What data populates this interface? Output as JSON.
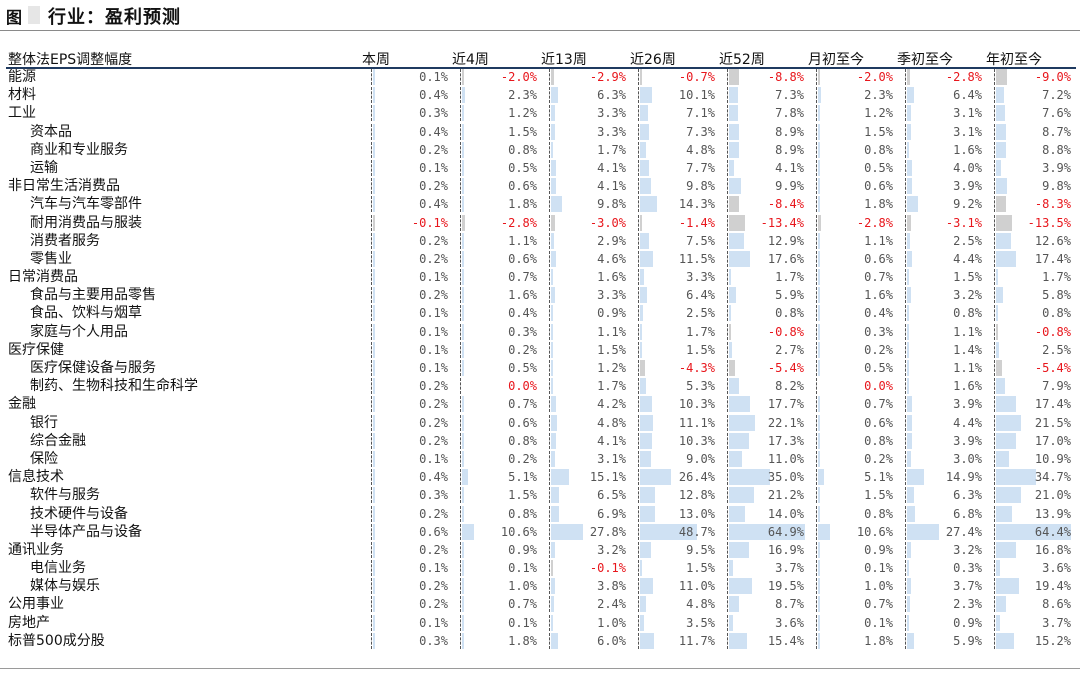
{
  "figure": {
    "label": "图",
    "title": "行业：盈利预测"
  },
  "columns": {
    "row_header": "整体法EPS调整幅度",
    "list": [
      "本周",
      "近4周",
      "近13周",
      "近26周",
      "近52周",
      "月初至今",
      "季初至今",
      "年初至今"
    ]
  },
  "colors": {
    "positive_bar": "#cfe1f3",
    "negative_bar": "#d0d0d0",
    "negative_text": "#e8161c",
    "header_rule": "#1f3a60"
  },
  "rows": [
    {
      "name": "能源",
      "level": 0,
      "values": [
        0.1,
        -2.0,
        -2.9,
        -0.7,
        -8.8,
        -2.0,
        -2.8,
        -9.0
      ],
      "display": [
        "0.1%",
        "-2.0%",
        "-2.9%",
        "-0.7%",
        "-8.8%",
        "-2.0%",
        "-2.8%",
        "-9.0%"
      ]
    },
    {
      "name": "材料",
      "level": 0,
      "values": [
        0.4,
        2.3,
        6.3,
        10.1,
        7.3,
        2.3,
        6.4,
        7.2
      ],
      "display": [
        "0.4%",
        "2.3%",
        "6.3%",
        "10.1%",
        "7.3%",
        "2.3%",
        "6.4%",
        "7.2%"
      ]
    },
    {
      "name": "工业",
      "level": 0,
      "values": [
        0.3,
        1.2,
        3.3,
        7.1,
        7.8,
        1.2,
        3.1,
        7.6
      ],
      "display": [
        "0.3%",
        "1.2%",
        "3.3%",
        "7.1%",
        "7.8%",
        "1.2%",
        "3.1%",
        "7.6%"
      ]
    },
    {
      "name": "资本品",
      "level": 1,
      "values": [
        0.4,
        1.5,
        3.3,
        7.3,
        8.9,
        1.5,
        3.1,
        8.7
      ],
      "display": [
        "0.4%",
        "1.5%",
        "3.3%",
        "7.3%",
        "8.9%",
        "1.5%",
        "3.1%",
        "8.7%"
      ]
    },
    {
      "name": "商业和专业服务",
      "level": 1,
      "values": [
        0.2,
        0.8,
        1.7,
        4.8,
        8.9,
        0.8,
        1.6,
        8.8
      ],
      "display": [
        "0.2%",
        "0.8%",
        "1.7%",
        "4.8%",
        "8.9%",
        "0.8%",
        "1.6%",
        "8.8%"
      ]
    },
    {
      "name": "运输",
      "level": 1,
      "values": [
        0.1,
        0.5,
        4.1,
        7.7,
        4.1,
        0.5,
        4.0,
        3.9
      ],
      "display": [
        "0.1%",
        "0.5%",
        "4.1%",
        "7.7%",
        "4.1%",
        "0.5%",
        "4.0%",
        "3.9%"
      ]
    },
    {
      "name": "非日常生活消费品",
      "level": 0,
      "values": [
        0.2,
        0.6,
        4.1,
        9.8,
        9.9,
        0.6,
        3.9,
        9.8
      ],
      "display": [
        "0.2%",
        "0.6%",
        "4.1%",
        "9.8%",
        "9.9%",
        "0.6%",
        "3.9%",
        "9.8%"
      ]
    },
    {
      "name": "汽车与汽车零部件",
      "level": 1,
      "values": [
        0.4,
        1.8,
        9.8,
        14.3,
        -8.4,
        1.8,
        9.2,
        -8.3
      ],
      "display": [
        "0.4%",
        "1.8%",
        "9.8%",
        "14.3%",
        "-8.4%",
        "1.8%",
        "9.2%",
        "-8.3%"
      ]
    },
    {
      "name": "耐用消费品与服装",
      "level": 1,
      "values": [
        -0.1,
        -2.8,
        -3.0,
        -1.4,
        -13.4,
        -2.8,
        -3.1,
        -13.5
      ],
      "display": [
        "-0.1%",
        "-2.8%",
        "-3.0%",
        "-1.4%",
        "-13.4%",
        "-2.8%",
        "-3.1%",
        "-13.5%"
      ]
    },
    {
      "name": "消费者服务",
      "level": 1,
      "values": [
        0.2,
        1.1,
        2.9,
        7.5,
        12.9,
        1.1,
        2.5,
        12.6
      ],
      "display": [
        "0.2%",
        "1.1%",
        "2.9%",
        "7.5%",
        "12.9%",
        "1.1%",
        "2.5%",
        "12.6%"
      ]
    },
    {
      "name": "零售业",
      "level": 1,
      "values": [
        0.2,
        0.6,
        4.6,
        11.5,
        17.6,
        0.6,
        4.4,
        17.4
      ],
      "display": [
        "0.2%",
        "0.6%",
        "4.6%",
        "11.5%",
        "17.6%",
        "0.6%",
        "4.4%",
        "17.4%"
      ]
    },
    {
      "name": "日常消费品",
      "level": 0,
      "values": [
        0.1,
        0.7,
        1.6,
        3.3,
        1.7,
        0.7,
        1.5,
        1.7
      ],
      "display": [
        "0.1%",
        "0.7%",
        "1.6%",
        "3.3%",
        "1.7%",
        "0.7%",
        "1.5%",
        "1.7%"
      ]
    },
    {
      "name": "食品与主要用品零售",
      "level": 1,
      "values": [
        0.2,
        1.6,
        3.3,
        6.4,
        5.9,
        1.6,
        3.2,
        5.8
      ],
      "display": [
        "0.2%",
        "1.6%",
        "3.3%",
        "6.4%",
        "5.9%",
        "1.6%",
        "3.2%",
        "5.8%"
      ]
    },
    {
      "name": "食品、饮料与烟草",
      "level": 1,
      "values": [
        0.1,
        0.4,
        0.9,
        2.5,
        0.8,
        0.4,
        0.8,
        0.8
      ],
      "display": [
        "0.1%",
        "0.4%",
        "0.9%",
        "2.5%",
        "0.8%",
        "0.4%",
        "0.8%",
        "0.8%"
      ]
    },
    {
      "name": "家庭与个人用品",
      "level": 1,
      "values": [
        0.1,
        0.3,
        1.1,
        1.7,
        -0.8,
        0.3,
        1.1,
        -0.8
      ],
      "display": [
        "0.1%",
        "0.3%",
        "1.1%",
        "1.7%",
        "-0.8%",
        "0.3%",
        "1.1%",
        "-0.8%"
      ]
    },
    {
      "name": "医疗保健",
      "level": 0,
      "values": [
        0.1,
        0.2,
        1.5,
        1.5,
        2.7,
        0.2,
        1.4,
        2.5
      ],
      "display": [
        "0.1%",
        "0.2%",
        "1.5%",
        "1.5%",
        "2.7%",
        "0.2%",
        "1.4%",
        "2.5%"
      ]
    },
    {
      "name": "医疗保健设备与服务",
      "level": 1,
      "values": [
        0.1,
        0.5,
        1.2,
        -4.3,
        -5.4,
        0.5,
        1.1,
        -5.4
      ],
      "display": [
        "0.1%",
        "0.5%",
        "1.2%",
        "-4.3%",
        "-5.4%",
        "0.5%",
        "1.1%",
        "-5.4%"
      ]
    },
    {
      "name": "制药、生物科技和生命科学",
      "level": 1,
      "values": [
        0.2,
        0.0,
        1.7,
        5.3,
        8.2,
        0.0,
        1.6,
        7.9
      ],
      "display": [
        "0.2%",
        "0.0%",
        "1.7%",
        "5.3%",
        "8.2%",
        "0.0%",
        "1.6%",
        "7.9%"
      ],
      "red_zero": [
        1,
        5
      ]
    },
    {
      "name": "金融",
      "level": 0,
      "values": [
        0.2,
        0.7,
        4.2,
        10.3,
        17.7,
        0.7,
        3.9,
        17.4
      ],
      "display": [
        "0.2%",
        "0.7%",
        "4.2%",
        "10.3%",
        "17.7%",
        "0.7%",
        "3.9%",
        "17.4%"
      ]
    },
    {
      "name": "银行",
      "level": 1,
      "values": [
        0.2,
        0.6,
        4.8,
        11.1,
        22.1,
        0.6,
        4.4,
        21.5
      ],
      "display": [
        "0.2%",
        "0.6%",
        "4.8%",
        "11.1%",
        "22.1%",
        "0.6%",
        "4.4%",
        "21.5%"
      ]
    },
    {
      "name": "综合金融",
      "level": 1,
      "values": [
        0.2,
        0.8,
        4.1,
        10.3,
        17.3,
        0.8,
        3.9,
        17.0
      ],
      "display": [
        "0.2%",
        "0.8%",
        "4.1%",
        "10.3%",
        "17.3%",
        "0.8%",
        "3.9%",
        "17.0%"
      ]
    },
    {
      "name": "保险",
      "level": 1,
      "values": [
        0.1,
        0.2,
        3.1,
        9.0,
        11.0,
        0.2,
        3.0,
        10.9
      ],
      "display": [
        "0.1%",
        "0.2%",
        "3.1%",
        "9.0%",
        "11.0%",
        "0.2%",
        "3.0%",
        "10.9%"
      ]
    },
    {
      "name": "信息技术",
      "level": 0,
      "values": [
        0.4,
        5.1,
        15.1,
        26.4,
        35.0,
        5.1,
        14.9,
        34.7
      ],
      "display": [
        "0.4%",
        "5.1%",
        "15.1%",
        "26.4%",
        "35.0%",
        "5.1%",
        "14.9%",
        "34.7%"
      ]
    },
    {
      "name": "软件与服务",
      "level": 1,
      "values": [
        0.3,
        1.5,
        6.5,
        12.8,
        21.2,
        1.5,
        6.3,
        21.0
      ],
      "display": [
        "0.3%",
        "1.5%",
        "6.5%",
        "12.8%",
        "21.2%",
        "1.5%",
        "6.3%",
        "21.0%"
      ]
    },
    {
      "name": "技术硬件与设备",
      "level": 1,
      "values": [
        0.2,
        0.8,
        6.9,
        13.0,
        14.0,
        0.8,
        6.8,
        13.9
      ],
      "display": [
        "0.2%",
        "0.8%",
        "6.9%",
        "13.0%",
        "14.0%",
        "0.8%",
        "6.8%",
        "13.9%"
      ]
    },
    {
      "name": "半导体产品与设备",
      "level": 1,
      "values": [
        0.6,
        10.6,
        27.8,
        48.7,
        64.9,
        10.6,
        27.4,
        64.4
      ],
      "display": [
        "0.6%",
        "10.6%",
        "27.8%",
        "48.7%",
        "64.9%",
        "10.6%",
        "27.4%",
        "64.4%"
      ]
    },
    {
      "name": "通讯业务",
      "level": 0,
      "values": [
        0.2,
        0.9,
        3.2,
        9.5,
        16.9,
        0.9,
        3.2,
        16.8
      ],
      "display": [
        "0.2%",
        "0.9%",
        "3.2%",
        "9.5%",
        "16.9%",
        "0.9%",
        "3.2%",
        "16.8%"
      ]
    },
    {
      "name": "电信业务",
      "level": 1,
      "values": [
        0.1,
        0.1,
        -0.1,
        1.5,
        3.7,
        0.1,
        0.3,
        3.6
      ],
      "display": [
        "0.1%",
        "0.1%",
        "-0.1%",
        "1.5%",
        "3.7%",
        "0.1%",
        "0.3%",
        "3.6%"
      ]
    },
    {
      "name": "媒体与娱乐",
      "level": 1,
      "values": [
        0.2,
        1.0,
        3.8,
        11.0,
        19.5,
        1.0,
        3.7,
        19.4
      ],
      "display": [
        "0.2%",
        "1.0%",
        "3.8%",
        "11.0%",
        "19.5%",
        "1.0%",
        "3.7%",
        "19.4%"
      ]
    },
    {
      "name": "公用事业",
      "level": 0,
      "values": [
        0.2,
        0.7,
        2.4,
        4.8,
        8.7,
        0.7,
        2.3,
        8.6
      ],
      "display": [
        "0.2%",
        "0.7%",
        "2.4%",
        "4.8%",
        "8.7%",
        "0.7%",
        "2.3%",
        "8.6%"
      ]
    },
    {
      "name": "房地产",
      "level": 0,
      "values": [
        0.1,
        0.1,
        1.0,
        3.5,
        3.6,
        0.1,
        0.9,
        3.7
      ],
      "display": [
        "0.1%",
        "0.1%",
        "1.0%",
        "3.5%",
        "3.6%",
        "0.1%",
        "0.9%",
        "3.7%"
      ]
    },
    {
      "name": "标普500成分股",
      "level": 0,
      "values": [
        0.3,
        1.8,
        6.0,
        11.7,
        15.4,
        1.8,
        5.9,
        15.2
      ],
      "display": [
        "0.3%",
        "1.8%",
        "6.0%",
        "11.7%",
        "15.4%",
        "1.8%",
        "5.9%",
        "15.2%"
      ]
    }
  ]
}
